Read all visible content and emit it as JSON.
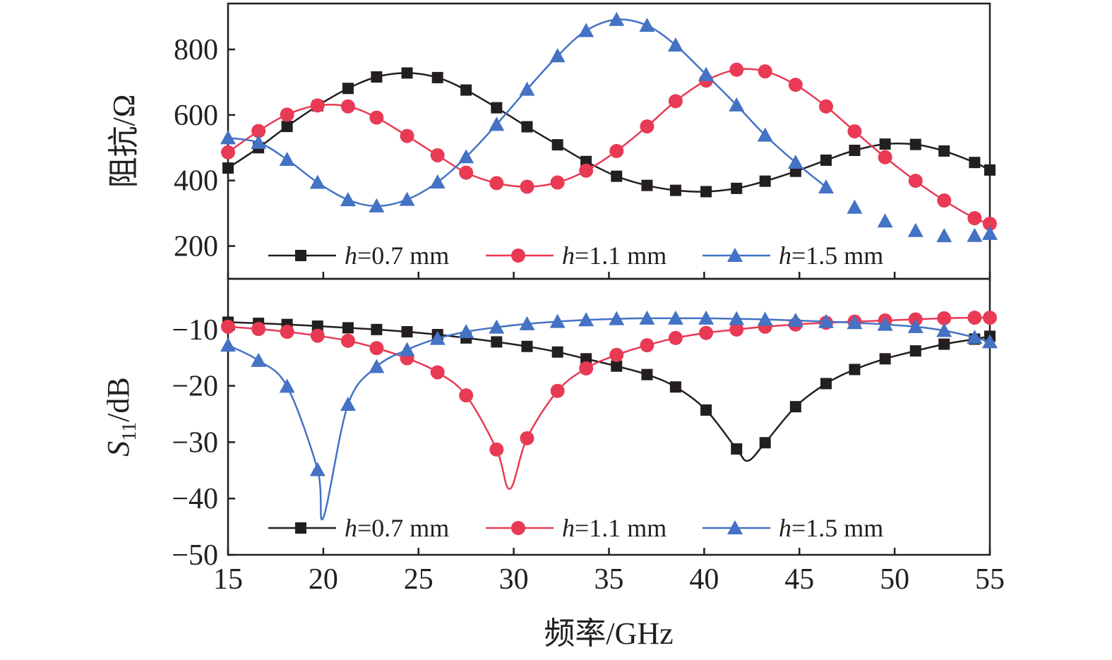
{
  "x_axis_title": "频率/GHz",
  "chart_data": [
    {
      "type": "line",
      "ylabel": "阻抗/Ω",
      "xlim": [
        15,
        55
      ],
      "ylim": [
        100,
        940
      ],
      "yticks": [
        "200",
        "400",
        "600",
        "800"
      ],
      "xticks": [
        "15",
        "20",
        "25",
        "30",
        "35",
        "40",
        "45",
        "50",
        "55"
      ],
      "grid": false,
      "legend_position": "bottom",
      "series": [
        {
          "name_prefix": "h",
          "name_suffix": "=0.7 mm",
          "color": "#231f20",
          "marker": "square",
          "x": [
            15,
            16.6,
            18.1,
            19.7,
            21.3,
            22.8,
            24.4,
            26.0,
            27.5,
            29.1,
            30.7,
            32.3,
            33.8,
            35.4,
            37.0,
            38.5,
            40.1,
            41.7,
            43.2,
            44.8,
            46.4,
            47.9,
            49.5,
            51.1,
            52.6,
            54.2,
            55
          ],
          "y": [
            438,
            500,
            565,
            628,
            681,
            716,
            728,
            714,
            676,
            622,
            564,
            509,
            458,
            413,
            385,
            370,
            366,
            376,
            398,
            428,
            462,
            492,
            511,
            510,
            490,
            455,
            432
          ]
        },
        {
          "name_prefix": "h",
          "name_suffix": "=1.1 mm",
          "color": "#e83a54",
          "marker": "circle",
          "x": [
            15,
            16.6,
            18.1,
            19.7,
            21.3,
            22.8,
            24.4,
            26.0,
            27.5,
            29.1,
            30.7,
            32.3,
            33.8,
            35.4,
            37.0,
            38.5,
            40.1,
            41.7,
            43.2,
            44.8,
            46.4,
            47.9,
            49.5,
            51.1,
            52.6,
            54.2,
            55
          ],
          "y": [
            486,
            551,
            601,
            629,
            626,
            592,
            536,
            477,
            424,
            392,
            381,
            394,
            430,
            490,
            565,
            642,
            705,
            738,
            733,
            692,
            626,
            550,
            471,
            399,
            339,
            285,
            268
          ]
        },
        {
          "name_prefix": "h",
          "name_suffix": "=1.5 mm",
          "color": "#4472c4",
          "marker": "triangle",
          "x": [
            15,
            16.6,
            18.1,
            19.7,
            21.3,
            22.8,
            24.4,
            26.0,
            27.5,
            29.1,
            30.7,
            32.3,
            33.8,
            35.4,
            37.0,
            38.5,
            40.1,
            41.7,
            43.2,
            44.8,
            46.4,
            47.9,
            49.5,
            51.1,
            52.6,
            54.2,
            55
          ],
          "y": [
            530,
            516,
            464,
            394,
            341,
            322,
            342,
            395,
            472,
            571,
            678,
            780,
            857,
            891,
            873,
            813,
            723,
            630,
            538,
            455,
            380,
            318,
            276,
            247,
            231,
            232,
            238
          ],
          "line_end_x": 46.4
        }
      ]
    },
    {
      "type": "line",
      "ylabel_main": "S",
      "ylabel_sub": "11",
      "ylabel_rest": "/dB",
      "xlim": [
        15,
        55
      ],
      "ylim": [
        -50,
        -1
      ],
      "yticks": [
        "−10",
        "−20",
        "−30",
        "−40",
        "−50"
      ],
      "xticks": [
        "15",
        "20",
        "25",
        "30",
        "35",
        "40",
        "45",
        "50",
        "55"
      ],
      "grid": false,
      "legend_position": "bottom",
      "series": [
        {
          "name_prefix": "h",
          "name_suffix": "=0.7 mm",
          "color": "#231f20",
          "marker": "square",
          "x": [
            15,
            16.6,
            18.1,
            19.7,
            21.3,
            22.8,
            24.4,
            26.0,
            27.5,
            29.1,
            30.7,
            32.3,
            33.8,
            35.4,
            37.0,
            38.5,
            40.1,
            41.7,
            43.2,
            44.8,
            46.4,
            47.9,
            49.5,
            51.1,
            52.6,
            54.2,
            55
          ],
          "y": [
            -8.7,
            -8.9,
            -9.1,
            -9.4,
            -9.7,
            -10.0,
            -10.4,
            -10.9,
            -11.5,
            -12.2,
            -13.0,
            -14.0,
            -15.2,
            -16.5,
            -18.0,
            -20.2,
            -24.3,
            -31.2,
            -30.1,
            -23.7,
            -19.6,
            -17.1,
            -15.2,
            -13.8,
            -12.6,
            -11.7,
            -11.2
          ],
          "min_point": [
            42.3,
            -33.3
          ]
        },
        {
          "name_prefix": "h",
          "name_suffix": "=1.1 mm",
          "color": "#e83a54",
          "marker": "circle",
          "x": [
            15,
            16.6,
            18.1,
            19.7,
            21.3,
            22.8,
            24.4,
            26.0,
            27.5,
            29.1,
            30.7,
            32.3,
            33.8,
            35.4,
            37.0,
            38.5,
            40.1,
            41.7,
            43.2,
            44.8,
            46.4,
            47.9,
            49.5,
            51.1,
            52.6,
            54.2,
            55
          ],
          "y": [
            -9.5,
            -9.9,
            -10.4,
            -11.1,
            -12.0,
            -13.3,
            -15.1,
            -17.6,
            -21.7,
            -31.3,
            -29.3,
            -20.9,
            -16.9,
            -14.5,
            -12.8,
            -11.5,
            -10.6,
            -10.0,
            -9.5,
            -9.1,
            -8.8,
            -8.6,
            -8.4,
            -8.2,
            -8.0,
            -7.9,
            -7.9
          ],
          "min_point": [
            29.8,
            -38.3
          ]
        },
        {
          "name_prefix": "h",
          "name_suffix": "=1.5 mm",
          "color": "#4472c4",
          "marker": "triangle",
          "x": [
            15,
            16.6,
            18.1,
            19.7,
            21.3,
            22.8,
            24.4,
            26.0,
            27.5,
            29.1,
            30.7,
            32.3,
            33.8,
            35.4,
            37.0,
            38.5,
            40.1,
            41.7,
            43.2,
            44.8,
            46.4,
            47.9,
            49.5,
            51.1,
            52.6,
            54.2,
            55
          ],
          "y": [
            -12.8,
            -15.5,
            -20.1,
            -34.9,
            -23.3,
            -16.6,
            -13.6,
            -11.6,
            -10.4,
            -9.6,
            -9.0,
            -8.6,
            -8.3,
            -8.1,
            -8.0,
            -8.0,
            -8.0,
            -8.1,
            -8.2,
            -8.4,
            -8.6,
            -8.8,
            -9.1,
            -9.5,
            -10.2,
            -11.4,
            -12.2
          ],
          "min_point": [
            20.0,
            -43.4
          ]
        }
      ]
    }
  ]
}
